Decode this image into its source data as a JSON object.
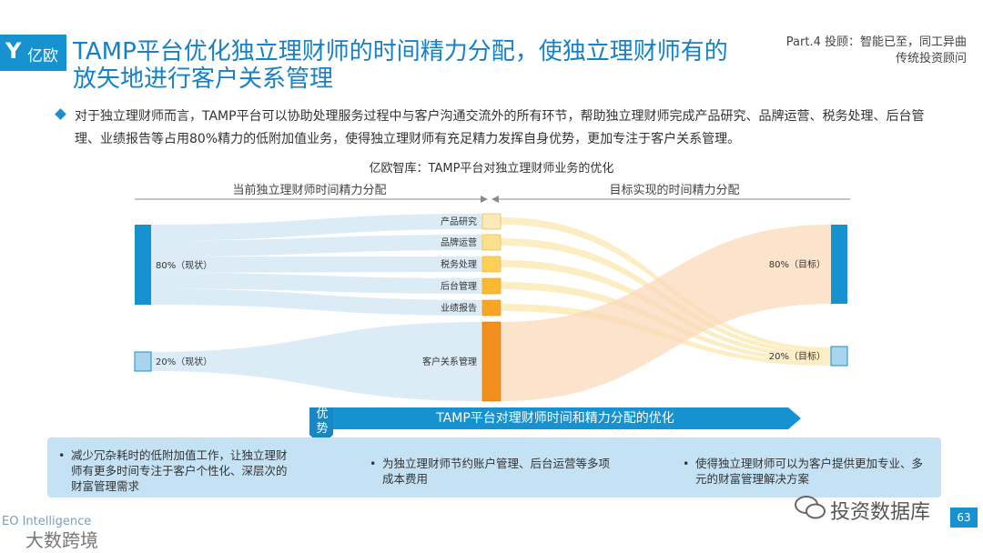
{
  "logo": {
    "mark": "Y",
    "text": "亿欧"
  },
  "title": "TAMP平台优化独立理财师的时间精力分配，使独立理财师有的放矢地进行客户关系管理",
  "part": {
    "line1": "Part.4 投顾：智能已至，同工异曲",
    "line2": "传统投资顾问"
  },
  "bullet": "对于独立理财师而言，TAMP平台可以协助处理服务过程中与客户沟通交流外的所有环节，帮助独立理财师完成产品研究、品牌运营、税务处理、后台管理、业绩报告等占用80%精力的低附加值业务，使得独立理财师有充足精力发挥自身优势，更加专注于客户关系管理。",
  "chart_title": "亿欧智库：TAMP平台对独立理财师业务的优化",
  "sections": {
    "left": "当前独立理财师时间精力分配",
    "right": "目标实现的时间精力分配"
  },
  "left_nodes": [
    {
      "label": "80%（现状）"
    },
    {
      "label": "20%（现状）"
    }
  ],
  "middle_nodes": [
    {
      "label": "产品研究",
      "color": "#fde9b7"
    },
    {
      "label": "品牌运营",
      "color": "#fce08f"
    },
    {
      "label": "税务处理",
      "color": "#fbcf58"
    },
    {
      "label": "后台管理",
      "color": "#f9b930"
    },
    {
      "label": "业绩报告",
      "color": "#f8a526"
    },
    {
      "label": "客户关系管理",
      "color": "#f3901d"
    }
  ],
  "right_nodes": [
    {
      "label": "80%（目标）"
    },
    {
      "label": "20%（目标）"
    }
  ],
  "colors": {
    "accent": "#1592cf",
    "flow_left": "#d6e9f5",
    "flow_right": "#fbd9bb",
    "flow_thin": "#fbe6a8"
  },
  "advantage": {
    "tag": "优势",
    "banner": "TAMP平台对理财师时间和精力分配的优化",
    "items": [
      "减少冗杂耗时的低附加值工作，让独立理财师有更多时间专注于客户个性化、深层次的财富管理需求",
      "为独立理财师节约账户管理、后台运营等多项成本费用",
      "使得独立理财师可以为客户提供更加专业、多元的财富管理解决方案"
    ]
  },
  "footer": {
    "eo": "EO Intelligence",
    "watermark_left": "大数跨境",
    "watermark_right": "投资数据库",
    "page": "63"
  }
}
